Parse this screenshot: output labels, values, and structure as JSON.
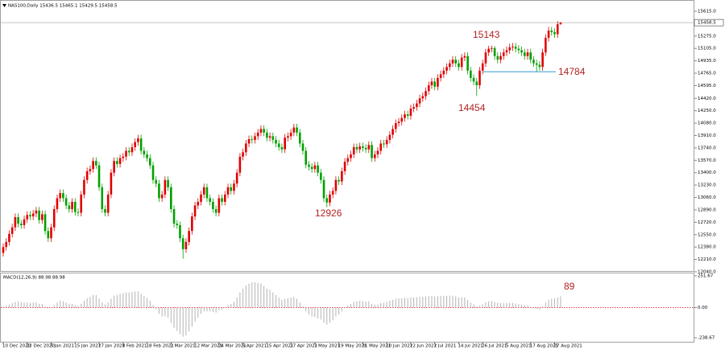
{
  "chart_data": {
    "type": "candlestick",
    "title": "NAS100,Daily  15436.5 15465.1 15429.5 15458.5",
    "up_color": "#e00000",
    "down_color": "#00a000",
    "categories": [
      "10 Dec 2020",
      null,
      null,
      null,
      null,
      null,
      null,
      null,
      "22 Dec 2020",
      null,
      null,
      null,
      null,
      null,
      null,
      null,
      "5 Jan 2021",
      null,
      null,
      null,
      null,
      null,
      null,
      null,
      "15 Jan 2021",
      null,
      null,
      null,
      null,
      null,
      null,
      null,
      "27 Jan 2021",
      null,
      null,
      null,
      null,
      null,
      null,
      null,
      "8 Feb 2021",
      null,
      null,
      null,
      null,
      null,
      null,
      null,
      "18 Feb 2021",
      null,
      null,
      null,
      null,
      null,
      null,
      null,
      "2 Mar 2021",
      null,
      null,
      null,
      null,
      null,
      null,
      null,
      "12 Mar 2021",
      null,
      null,
      null,
      null,
      null,
      null,
      null,
      "24 Mar 2021",
      null,
      null,
      null,
      null,
      null,
      null,
      null,
      "5 Apr 2021",
      null,
      null,
      null,
      null,
      null,
      null,
      null,
      "15 Apr 2021",
      null,
      null,
      null,
      null,
      null,
      null,
      null,
      "27 Apr 2021",
      null,
      null,
      null,
      null,
      null,
      null,
      null,
      "7 May 2021",
      null,
      null,
      null,
      null,
      null,
      null,
      null,
      "19 May 2021",
      null,
      null,
      null,
      null,
      null,
      null,
      null,
      "31 May 2021",
      null,
      null,
      null,
      null,
      null,
      null,
      null,
      "10 Jun 2021",
      null,
      null,
      null,
      null,
      null,
      null,
      null,
      "22 Jun 2021",
      null,
      null,
      null,
      null,
      null,
      null,
      null,
      "2 Jul 2021",
      null,
      null,
      null,
      null,
      null,
      null,
      null,
      "14 Jul 2021",
      null,
      null,
      null,
      null,
      null,
      null,
      null,
      "26 Jul 2021",
      null,
      null,
      null,
      null,
      null,
      null,
      null,
      "5 Aug 2021",
      null,
      null,
      null,
      null,
      null,
      null,
      null,
      "17 Aug 2021",
      null,
      null,
      null,
      null,
      null,
      null,
      null,
      "27 Aug 2021",
      null,
      null
    ],
    "open": [
      12300,
      12380,
      12450,
      12560,
      12650,
      12790,
      12700,
      12680,
      12760,
      12820,
      12800,
      12840,
      12880,
      12750,
      12830,
      12600,
      12500,
      12650,
      12900,
      13050,
      13120,
      13050,
      12950,
      12900,
      13000,
      12860,
      12850,
      13100,
      13300,
      13420,
      13450,
      13560,
      13500,
      13200,
      12900,
      12850,
      13100,
      13400,
      13560,
      13520,
      13600,
      13620,
      13700,
      13680,
      13750,
      13820,
      13870,
      13700,
      13650,
      13600,
      13500,
      13300,
      13250,
      13050,
      13100,
      13300,
      13200,
      12900,
      12700,
      12680,
      12500,
      12350,
      12450,
      12600,
      12800,
      12950,
      13000,
      13100,
      13200,
      13050,
      13000,
      12900,
      12850,
      13050,
      13000,
      13100,
      13200,
      13150,
      13250,
      13400,
      13620,
      13680,
      13800,
      13860,
      13850,
      13900,
      13950,
      14000,
      13950,
      13880,
      13900,
      13850,
      13800,
      13750,
      13720,
      13880,
      13900,
      13950,
      14020,
      13950,
      13800,
      13700,
      13510,
      13480,
      13450,
      13500,
      13400,
      13300,
      13050,
      12990,
      13100,
      13150,
      13300,
      13280,
      13420,
      13550,
      13600,
      13650,
      13750,
      13720,
      13760,
      13740,
      13720,
      13780,
      13600,
      13650,
      13700,
      13800,
      13790,
      13850,
      13920,
      14000,
      14080,
      14100,
      14150,
      14200,
      14180,
      14280,
      14300,
      14350,
      14420,
      14450,
      14520,
      14600,
      14650,
      14580,
      14700,
      14750,
      14800,
      14850,
      14900,
      14950,
      14900,
      14850,
      14980,
      15000,
      14800,
      14700,
      14650,
      14600,
      14800,
      14900,
      15050,
      15100,
      15110,
      15000,
      14950,
      15000,
      15050,
      15080,
      15120,
      15130,
      15100,
      15080,
      15050,
      15000,
      15050,
      14950,
      14900,
      14880,
      14850,
      15050,
      15250,
      15350,
      15330,
      15300,
      15436.5
    ],
    "high": [
      12430,
      12500,
      12610,
      12700,
      12840,
      12840,
      12750,
      12810,
      12870,
      12870,
      12890,
      12930,
      12930,
      12880,
      12880,
      12650,
      12700,
      12950,
      13100,
      13170,
      13170,
      13100,
      13000,
      13050,
      13050,
      12910,
      13150,
      13350,
      13470,
      13500,
      13610,
      13610,
      13550,
      13250,
      12950,
      13150,
      13450,
      13610,
      13610,
      13650,
      13670,
      13750,
      13750,
      13800,
      13870,
      13920,
      13920,
      13750,
      13700,
      13650,
      13550,
      13350,
      13300,
      13150,
      13350,
      13350,
      13250,
      12950,
      12750,
      12730,
      12550,
      12500,
      12650,
      12850,
      13000,
      13050,
      13150,
      13250,
      13250,
      13100,
      13050,
      12950,
      13100,
      13100,
      13150,
      13250,
      13250,
      13300,
      13450,
      13670,
      13730,
      13850,
      13910,
      13910,
      13950,
      14000,
      14050,
      14050,
      14000,
      13950,
      13950,
      13900,
      13850,
      13800,
      13930,
      13950,
      14000,
      14070,
      14070,
      14000,
      13850,
      13750,
      13560,
      13530,
      13550,
      13550,
      13450,
      13350,
      13100,
      13150,
      13200,
      13350,
      13350,
      13470,
      13600,
      13650,
      13700,
      13800,
      13800,
      13810,
      13810,
      13790,
      13830,
      13830,
      13700,
      13750,
      13850,
      13850,
      13900,
      13970,
      14050,
      14130,
      14150,
      14200,
      14250,
      14250,
      14330,
      14350,
      14400,
      14470,
      14500,
      14570,
      14650,
      14700,
      14700,
      14750,
      14800,
      14850,
      14900,
      14950,
      15000,
      15000,
      14950,
      15030,
      15050,
      15050,
      14850,
      14750,
      14700,
      14850,
      14950,
      15100,
      15140,
      15143,
      15135,
      15050,
      15050,
      15100,
      15130,
      15170,
      15180,
      15180,
      15150,
      15130,
      15100,
      15100,
      15100,
      15000,
      14950,
      14930,
      15100,
      15300,
      15400,
      15400,
      15380,
      15480,
      15465.1
    ],
    "low": [
      12250,
      12330,
      12400,
      12510,
      12600,
      12650,
      12630,
      12630,
      12710,
      12750,
      12750,
      12790,
      12700,
      12700,
      12550,
      12450,
      12450,
      12600,
      12850,
      13000,
      13000,
      12900,
      12850,
      12850,
      12810,
      12800,
      12800,
      13050,
      13250,
      13370,
      13400,
      13450,
      13150,
      12850,
      12800,
      12800,
      13050,
      13350,
      13470,
      13470,
      13550,
      13570,
      13630,
      13630,
      13700,
      13770,
      13650,
      13600,
      13550,
      13450,
      13250,
      13200,
      13000,
      13000,
      13050,
      13150,
      12850,
      12650,
      12630,
      12450,
      12220,
      12300,
      12400,
      12550,
      12750,
      12900,
      12950,
      13050,
      13000,
      12950,
      12850,
      12800,
      12800,
      12950,
      12950,
      13050,
      13100,
      13100,
      13200,
      13350,
      13570,
      13630,
      13750,
      13800,
      13800,
      13850,
      13900,
      13900,
      13830,
      13830,
      13800,
      13750,
      13700,
      13670,
      13670,
      13830,
      13850,
      13900,
      13900,
      13750,
      13650,
      13460,
      13430,
      13400,
      13400,
      13350,
      13250,
      13000,
      12926,
      12940,
      13050,
      13100,
      13230,
      13230,
      13370,
      13500,
      13550,
      13600,
      13670,
      13670,
      13690,
      13670,
      13670,
      13550,
      13550,
      13600,
      13650,
      13740,
      13740,
      13800,
      13870,
      13950,
      14030,
      14050,
      14100,
      14130,
      14130,
      14230,
      14250,
      14300,
      14370,
      14400,
      14470,
      14550,
      14530,
      14530,
      14650,
      14700,
      14750,
      14800,
      14850,
      14850,
      14800,
      14800,
      14930,
      14750,
      14650,
      14600,
      14454,
      14550,
      14750,
      14850,
      15000,
      15050,
      14950,
      14900,
      14900,
      14950,
      15000,
      15030,
      15070,
      15050,
      15030,
      15000,
      14950,
      14950,
      14900,
      14850,
      14784,
      14800,
      14800,
      15000,
      15200,
      15280,
      15250,
      15250,
      15429.5
    ],
    "close": [
      12380,
      12450,
      12560,
      12650,
      12790,
      12700,
      12680,
      12760,
      12820,
      12800,
      12840,
      12880,
      12750,
      12830,
      12600,
      12500,
      12650,
      12900,
      13050,
      13120,
      13050,
      12950,
      12900,
      13000,
      12860,
      12850,
      13100,
      13300,
      13420,
      13450,
      13560,
      13500,
      13200,
      12900,
      12850,
      13100,
      13400,
      13560,
      13520,
      13600,
      13620,
      13700,
      13680,
      13750,
      13820,
      13870,
      13700,
      13650,
      13600,
      13500,
      13300,
      13250,
      13050,
      13100,
      13300,
      13200,
      12900,
      12700,
      12680,
      12500,
      12350,
      12450,
      12600,
      12800,
      12950,
      13000,
      13100,
      13200,
      13050,
      13000,
      12900,
      12850,
      13050,
      13000,
      13100,
      13200,
      13150,
      13250,
      13400,
      13620,
      13680,
      13800,
      13860,
      13850,
      13900,
      13950,
      14000,
      13950,
      13880,
      13900,
      13850,
      13800,
      13750,
      13720,
      13880,
      13900,
      13950,
      14020,
      13950,
      13800,
      13700,
      13510,
      13480,
      13450,
      13500,
      13400,
      13300,
      13050,
      12990,
      13100,
      13150,
      13300,
      13280,
      13420,
      13550,
      13600,
      13650,
      13750,
      13720,
      13760,
      13740,
      13720,
      13780,
      13600,
      13650,
      13700,
      13800,
      13790,
      13850,
      13920,
      14000,
      14080,
      14100,
      14150,
      14200,
      14180,
      14280,
      14300,
      14350,
      14420,
      14450,
      14520,
      14600,
      14650,
      14580,
      14700,
      14750,
      14800,
      14850,
      14900,
      14950,
      14900,
      14850,
      14980,
      15000,
      14800,
      14700,
      14650,
      14600,
      14800,
      14900,
      15050,
      15100,
      15110,
      15000,
      14950,
      15000,
      15050,
      15080,
      15120,
      15130,
      15100,
      15080,
      15050,
      15000,
      15050,
      14950,
      14900,
      14880,
      14850,
      15050,
      15250,
      15350,
      15330,
      15300,
      15436.5,
      15458.5
    ],
    "ylim": [
      12040,
      15747
    ],
    "yticks": [
      {
        "value": 15615,
        "label": "15615.0"
      },
      {
        "value": 15275,
        "label": "15275.0"
      },
      {
        "value": 15105,
        "label": "15105.0"
      },
      {
        "value": 14935,
        "label": "14935.0"
      },
      {
        "value": 14765,
        "label": "14765.0"
      },
      {
        "value": 14595,
        "label": "14595.0"
      },
      {
        "value": 14420,
        "label": "14420.0"
      },
      {
        "value": 14250,
        "label": "14250.0"
      },
      {
        "value": 14080,
        "label": "14080.0"
      },
      {
        "value": 13910,
        "label": "13910.0"
      },
      {
        "value": 13740,
        "label": "13740.0"
      },
      {
        "value": 13570,
        "label": "13570.0"
      },
      {
        "value": 13400,
        "label": "13400.0"
      },
      {
        "value": 13230,
        "label": "13230.0"
      },
      {
        "value": 13060,
        "label": "13060.0"
      },
      {
        "value": 12890,
        "label": "12890.0"
      },
      {
        "value": 12720,
        "label": "12720.0"
      },
      {
        "value": 12550,
        "label": "12550.0"
      },
      {
        "value": 12380,
        "label": "12380.0"
      },
      {
        "value": 12210,
        "label": "12210.0"
      },
      {
        "value": 12040,
        "label": "12040.0"
      }
    ],
    "annotations": [
      15143,
      14454,
      14784,
      12926,
      89
    ],
    "level_color": "#5aaee0",
    "macd": {
      "name": "MACD(12,26,9) 88.98 88.98",
      "color": "#b4b4b4",
      "signal_color": "#e00000",
      "values": [
        10,
        15,
        25,
        35,
        45,
        50,
        45,
        40,
        40,
        38,
        40,
        42,
        30,
        30,
        10,
        -5,
        0,
        20,
        40,
        55,
        50,
        40,
        30,
        30,
        20,
        15,
        30,
        55,
        75,
        85,
        100,
        100,
        70,
        40,
        25,
        40,
        70,
        95,
        100,
        110,
        115,
        120,
        120,
        125,
        128,
        130,
        110,
        90,
        75,
        55,
        20,
        -10,
        -50,
        -70,
        -70,
        -80,
        -120,
        -160,
        -185,
        -210,
        -230,
        -220,
        -190,
        -150,
        -110,
        -80,
        -50,
        -30,
        -30,
        -30,
        -35,
        -40,
        -20,
        -15,
        0,
        20,
        30,
        45,
        80,
        120,
        150,
        175,
        190,
        200,
        200,
        195,
        190,
        170,
        150,
        140,
        120,
        100,
        80,
        60,
        70,
        75,
        80,
        85,
        70,
        40,
        10,
        -30,
        -55,
        -70,
        -75,
        -85,
        -95,
        -120,
        -135,
        -120,
        -100,
        -70,
        -55,
        -30,
        -5,
        15,
        30,
        45,
        50,
        55,
        52,
        48,
        50,
        30,
        25,
        25,
        35,
        38,
        45,
        55,
        62,
        70,
        72,
        74,
        78,
        75,
        80,
        80,
        82,
        85,
        85,
        88,
        92,
        94,
        88,
        90,
        92,
        93,
        94,
        95,
        95,
        88,
        80,
        82,
        80,
        60,
        40,
        25,
        10,
        15,
        25,
        40,
        50,
        52,
        45,
        38,
        36,
        36,
        37,
        38,
        37,
        32,
        28,
        24,
        18,
        18,
        8,
        0,
        -10,
        -15,
        10,
        40,
        60,
        70,
        72,
        80,
        89
      ],
      "ylim": [
        -238.67,
        251.67
      ],
      "yticks": [
        251.67,
        {
          "value": 0,
          "label": "0.00"
        },
        -238.67
      ]
    }
  }
}
